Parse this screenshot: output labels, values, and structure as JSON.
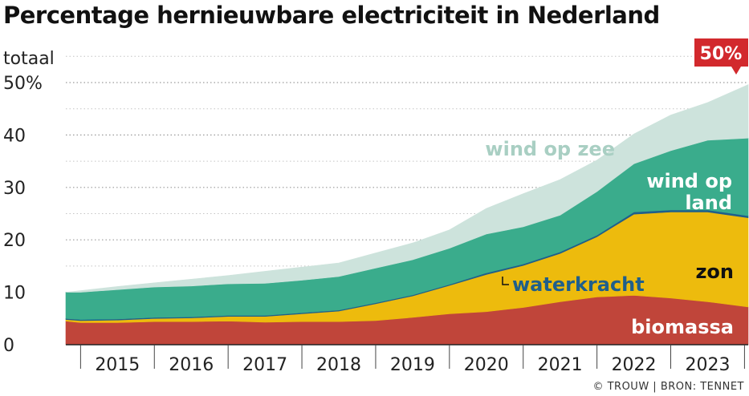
{
  "title": "Percentage hernieuwbare electriciteit in Nederland",
  "credit": "© TROUW | BRON: TENNET",
  "callout": "50%",
  "chart_data": {
    "type": "area",
    "stacked": true,
    "title": "Percentage hernieuwbare electriciteit in Nederland",
    "ylabel": "totaal",
    "ylim": [
      0,
      50
    ],
    "yticks": [
      "0",
      "10",
      "20",
      "30",
      "40",
      "50%"
    ],
    "xlim": [
      2014.8,
      2024.05
    ],
    "xticks": [
      "2015",
      "2016",
      "2017",
      "2018",
      "2019",
      "2020",
      "2021",
      "2022",
      "2023"
    ],
    "grid": "dotted horizontal",
    "legend": "inline labels",
    "x": [
      2014.8,
      2015.0,
      2015.5,
      2016.0,
      2016.5,
      2017.0,
      2017.5,
      2018.0,
      2018.5,
      2019.0,
      2019.5,
      2020.0,
      2020.5,
      2021.0,
      2021.5,
      2022.0,
      2022.5,
      2023.0,
      2023.5,
      2024.05
    ],
    "series": [
      {
        "name": "biomassa",
        "color": "#c0453a",
        "values": [
          4.5,
          4.2,
          4.2,
          4.4,
          4.4,
          4.5,
          4.3,
          4.4,
          4.4,
          4.6,
          5.2,
          5.9,
          6.3,
          7.1,
          8.2,
          9.1,
          9.4,
          8.9,
          8.2,
          7.2
        ]
      },
      {
        "name": "zon",
        "color": "#edbb0d",
        "values": [
          0.3,
          0.4,
          0.5,
          0.6,
          0.7,
          0.9,
          1.1,
          1.5,
          2.0,
          3.2,
          4.1,
          5.4,
          7.1,
          8.0,
          9.2,
          11.5,
          15.5,
          16.4,
          17.1,
          17.0
        ]
      },
      {
        "name": "waterkracht",
        "color": "#1f5f8b",
        "values": [
          0.2,
          0.2,
          0.2,
          0.2,
          0.2,
          0.2,
          0.2,
          0.2,
          0.2,
          0.2,
          0.2,
          0.2,
          0.3,
          0.3,
          0.3,
          0.3,
          0.4,
          0.4,
          0.4,
          0.4
        ]
      },
      {
        "name": "wind op land",
        "color": "#3aac8c",
        "values": [
          5.0,
          5.2,
          5.6,
          5.8,
          5.9,
          6.0,
          6.1,
          6.2,
          6.4,
          6.6,
          6.7,
          6.9,
          7.4,
          7.1,
          7.0,
          8.3,
          9.2,
          11.3,
          13.3,
          14.8
        ]
      },
      {
        "name": "wind op zee",
        "color": "#cde3dc",
        "values": [
          0.0,
          0.3,
          0.6,
          0.8,
          1.3,
          1.6,
          2.3,
          2.5,
          2.6,
          2.9,
          3.2,
          3.5,
          4.9,
          6.3,
          6.8,
          6.0,
          5.7,
          6.8,
          7.2,
          10.2
        ]
      }
    ]
  }
}
